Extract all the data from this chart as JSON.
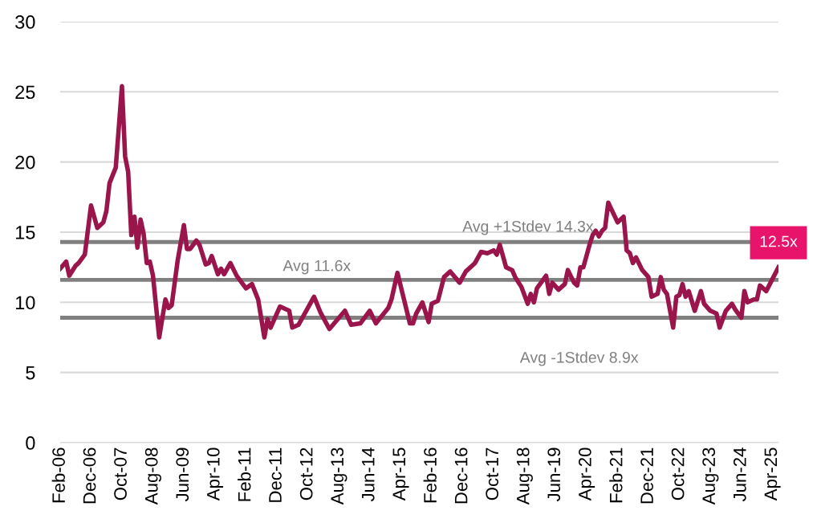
{
  "chart_data": {
    "type": "line",
    "x": [
      "2006-02",
      "2006-04",
      "2006-05",
      "2006-07",
      "2006-08",
      "2006-10",
      "2006-12",
      "2007-02",
      "2007-04",
      "2007-05",
      "2007-06",
      "2007-08",
      "2007-10",
      "2007-11",
      "2007-12",
      "2008-01",
      "2008-02",
      "2008-03",
      "2008-04",
      "2008-05",
      "2008-06",
      "2008-07",
      "2008-08",
      "2008-10",
      "2008-12",
      "2009-01",
      "2009-02",
      "2009-04",
      "2009-06",
      "2009-07",
      "2009-08",
      "2009-10",
      "2009-11",
      "2010-01",
      "2010-02",
      "2010-03",
      "2010-05",
      "2010-06",
      "2010-07",
      "2010-09",
      "2010-11",
      "2011-02",
      "2011-04",
      "2011-06",
      "2011-08",
      "2011-09",
      "2011-10",
      "2012-01",
      "2012-04",
      "2012-05",
      "2012-07",
      "2012-12",
      "2013-02",
      "2013-05",
      "2013-10",
      "2013-12",
      "2014-03",
      "2014-06",
      "2014-08",
      "2014-12",
      "2015-01",
      "2015-03",
      "2015-07",
      "2015-08",
      "2015-09",
      "2015-11",
      "2016-01",
      "2016-02",
      "2016-04",
      "2016-06",
      "2016-08",
      "2016-11",
      "2017-01",
      "2017-04",
      "2017-06",
      "2017-08",
      "2017-10",
      "2017-11",
      "2017-12",
      "2018-02",
      "2018-04",
      "2018-05",
      "2018-07",
      "2018-09",
      "2018-10",
      "2018-11",
      "2018-12",
      "2019-03",
      "2019-04",
      "2019-05",
      "2019-07",
      "2019-09",
      "2019-10",
      "2019-12",
      "2020-01",
      "2020-02",
      "2020-03",
      "2020-05",
      "2020-06",
      "2020-07",
      "2020-08",
      "2020-09",
      "2020-10",
      "2020-11",
      "2021-02",
      "2021-04",
      "2021-05",
      "2021-06",
      "2021-07",
      "2021-08",
      "2021-10",
      "2021-12",
      "2022-01",
      "2022-03",
      "2022-04",
      "2022-05",
      "2022-06",
      "2022-08",
      "2022-09",
      "2022-10",
      "2022-11",
      "2022-12",
      "2023-01",
      "2023-03",
      "2023-05",
      "2023-06",
      "2023-08",
      "2023-10",
      "2023-11",
      "2024-01",
      "2024-03",
      "2024-04",
      "2024-06",
      "2024-07",
      "2024-08",
      "2024-10",
      "2024-11",
      "2024-12",
      "2025-02",
      "2025-03",
      "2025-06"
    ],
    "series": [
      {
        "color": "#99154b",
        "values": [
          12.4,
          12.9,
          11.9,
          12.6,
          12.8,
          13.4,
          16.9,
          15.3,
          15.7,
          16.5,
          18.5,
          19.6,
          25.4,
          20.4,
          19.3,
          14.8,
          16.1,
          13.9,
          15.9,
          14.9,
          12.8,
          12.9,
          11.9,
          7.5,
          10.2,
          9.6,
          9.8,
          13.0,
          15.5,
          13.8,
          13.8,
          14.4,
          14.1,
          12.7,
          12.8,
          13.3,
          12.0,
          12.4,
          12.0,
          12.8,
          11.9,
          11.0,
          11.3,
          10.2,
          7.5,
          8.8,
          8.2,
          9.7,
          9.4,
          8.2,
          8.4,
          10.4,
          9.3,
          8.1,
          9.4,
          8.4,
          8.5,
          9.4,
          8.5,
          9.6,
          10.2,
          12.1,
          8.5,
          8.5,
          9.2,
          10.0,
          8.6,
          9.9,
          10.1,
          11.8,
          12.2,
          11.4,
          12.2,
          12.8,
          13.6,
          13.5,
          13.7,
          13.4,
          14.1,
          12.5,
          12.3,
          11.8,
          11.1,
          9.9,
          10.6,
          10.0,
          11.0,
          11.9,
          10.6,
          11.4,
          10.9,
          11.3,
          12.3,
          11.4,
          11.2,
          12.5,
          12.5,
          14.1,
          14.8,
          15.1,
          14.7,
          15.1,
          15.3,
          17.1,
          15.7,
          16.1,
          13.7,
          13.5,
          12.8,
          13.2,
          12.3,
          11.8,
          10.4,
          10.6,
          11.8,
          10.9,
          10.6,
          8.2,
          10.4,
          10.5,
          11.3,
          10.4,
          10.8,
          9.4,
          10.8,
          9.9,
          9.4,
          9.2,
          8.2,
          9.4,
          9.9,
          9.5,
          8.9,
          10.8,
          10.0,
          10.2,
          10.2,
          11.2,
          10.8,
          11.2,
          12.5
        ]
      }
    ],
    "xlim": [
      "2006-02",
      "2025-06"
    ],
    "xticks": [
      {
        "value": "2006-02",
        "label": "Feb-06"
      },
      {
        "value": "2006-12",
        "label": "Dec-06"
      },
      {
        "value": "2007-10",
        "label": "Oct-07"
      },
      {
        "value": "2008-08",
        "label": "Aug-08"
      },
      {
        "value": "2009-06",
        "label": "Jun-09"
      },
      {
        "value": "2010-04",
        "label": "Apr-10"
      },
      {
        "value": "2011-02",
        "label": "Feb-11"
      },
      {
        "value": "2011-12",
        "label": "Dec-11"
      },
      {
        "value": "2012-10",
        "label": "Oct-12"
      },
      {
        "value": "2013-08",
        "label": "Aug-13"
      },
      {
        "value": "2014-06",
        "label": "Jun-14"
      },
      {
        "value": "2015-04",
        "label": "Apr-15"
      },
      {
        "value": "2016-02",
        "label": "Feb-16"
      },
      {
        "value": "2016-12",
        "label": "Dec-16"
      },
      {
        "value": "2017-10",
        "label": "Oct-17"
      },
      {
        "value": "2018-08",
        "label": "Aug-18"
      },
      {
        "value": "2019-06",
        "label": "Jun-19"
      },
      {
        "value": "2020-04",
        "label": "Apr-20"
      },
      {
        "value": "2021-02",
        "label": "Feb-21"
      },
      {
        "value": "2021-12",
        "label": "Dec-21"
      },
      {
        "value": "2022-10",
        "label": "Oct-22"
      },
      {
        "value": "2023-08",
        "label": "Aug-23"
      },
      {
        "value": "2024-06",
        "label": "Jun-24"
      },
      {
        "value": "2025-04",
        "label": "Apr-25"
      }
    ],
    "ylim": [
      0,
      30
    ],
    "yticks": [
      0,
      5,
      10,
      15,
      20,
      25,
      30
    ],
    "grid": "y",
    "marker": "none",
    "line_style": "solid",
    "ref_lines": [
      {
        "axis": "y",
        "value": 14.3,
        "label": "Avg +1Stdev 14.3x",
        "color": "#808080"
      },
      {
        "axis": "y",
        "value": 11.6,
        "label": "Avg 11.6x",
        "color": "#808080"
      },
      {
        "axis": "y",
        "value": 8.9,
        "label": "Avg -1Stdev 8.9x",
        "color": "#808080"
      }
    ],
    "annotations": [
      {
        "text": "12.5x",
        "x": "2025-06",
        "y": 12.5
      }
    ]
  }
}
